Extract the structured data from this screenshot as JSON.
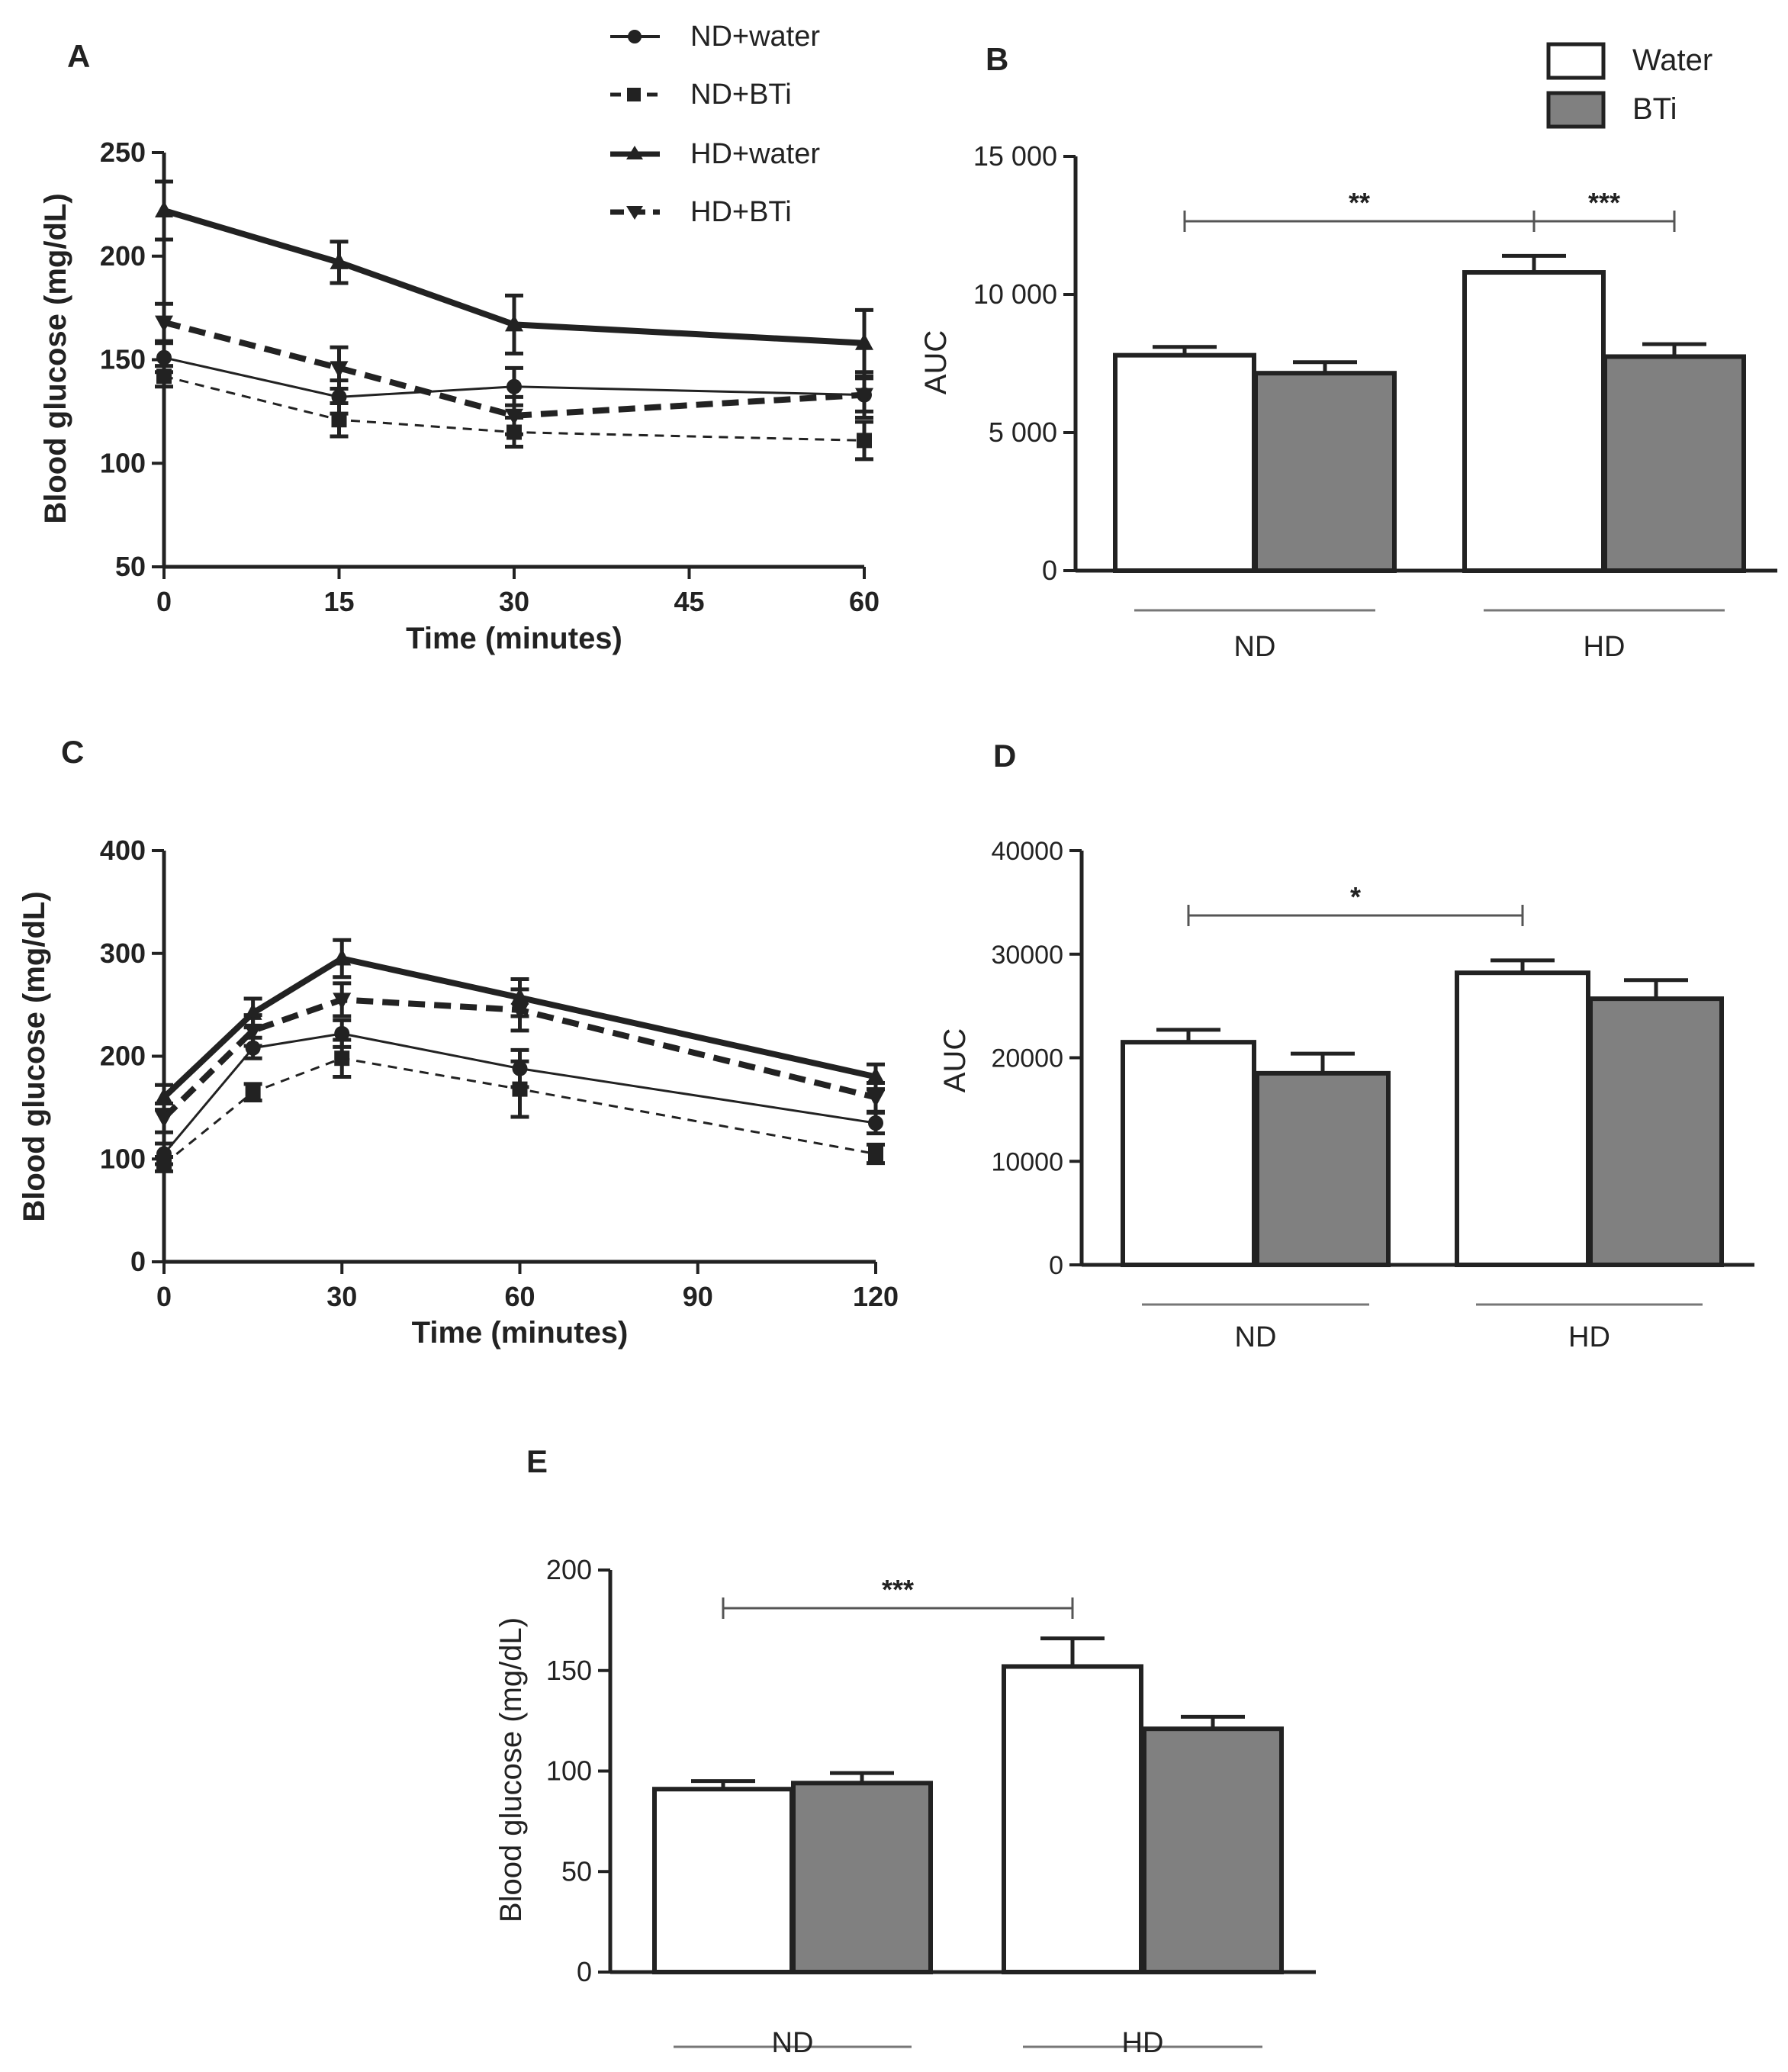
{
  "legend_lines": {
    "entries": [
      {
        "label": "ND+water",
        "marker": "circle",
        "dash": "solid-thin"
      },
      {
        "label": "ND+BTi",
        "marker": "square",
        "dash": "dashed-thin"
      },
      {
        "label": "HD+water",
        "marker": "triangle-up",
        "dash": "solid-thick"
      },
      {
        "label": "HD+BTi",
        "marker": "triangle-down",
        "dash": "dashed-thick"
      }
    ]
  },
  "legend_bars": {
    "entries": [
      {
        "label": "Water",
        "color": "#ffffff"
      },
      {
        "label": "BTi",
        "color": "#808080"
      }
    ]
  },
  "colors": {
    "water": "#ffffff",
    "bti": "#808080",
    "axis": "#222222",
    "sig": "#555555",
    "group_line": "#777777"
  },
  "chart_data": [
    {
      "panel": "A",
      "type": "line",
      "xlabel": "Time (minutes)",
      "ylabel": "Blood glucose (mg/dL)",
      "xlim": [
        0,
        60
      ],
      "ylim": [
        50,
        250
      ],
      "xticks": [
        0,
        15,
        30,
        45,
        60
      ],
      "yticks": [
        50,
        100,
        150,
        200,
        250
      ],
      "series": [
        {
          "name": "ND+water",
          "x": [
            0,
            15,
            30,
            60
          ],
          "values": [
            151,
            132,
            137,
            133
          ],
          "err": [
            7,
            8,
            9,
            8
          ]
        },
        {
          "name": "ND+BTi",
          "x": [
            0,
            15,
            30,
            60
          ],
          "values": [
            142,
            121,
            115,
            111
          ],
          "err": [
            5,
            8,
            7,
            9
          ]
        },
        {
          "name": "HD+water",
          "x": [
            0,
            15,
            30,
            60
          ],
          "values": [
            222,
            197,
            167,
            158
          ],
          "err": [
            14,
            10,
            14,
            16
          ]
        },
        {
          "name": "HD+BTi",
          "x": [
            0,
            15,
            30,
            60
          ],
          "values": [
            168,
            146,
            123,
            133
          ],
          "err": [
            9,
            10,
            9,
            11
          ]
        }
      ]
    },
    {
      "panel": "B",
      "type": "bar",
      "ylabel": "AUC",
      "ylim": [
        0,
        15000
      ],
      "yticks": [
        0,
        5000,
        10000,
        15000
      ],
      "ytick_labels": [
        "0",
        "5 000",
        "10 000",
        "15 000"
      ],
      "groups": [
        "ND",
        "HD"
      ],
      "series": [
        {
          "name": "Water",
          "values": [
            7800,
            10800
          ],
          "err": [
            300,
            600
          ]
        },
        {
          "name": "BTi",
          "values": [
            7150,
            7750
          ],
          "err": [
            400,
            450
          ]
        }
      ],
      "significance": [
        {
          "label": "**",
          "from": "ND-Water",
          "to": "HD-Water"
        },
        {
          "label": "***",
          "from": "HD-Water",
          "to": "HD-BTi"
        }
      ]
    },
    {
      "panel": "C",
      "type": "line",
      "xlabel": "Time (minutes)",
      "ylabel": "Blood glucose (mg/dL)",
      "xlim": [
        0,
        120
      ],
      "ylim": [
        0,
        400
      ],
      "xticks": [
        0,
        30,
        60,
        90,
        120
      ],
      "yticks": [
        0,
        100,
        200,
        300,
        400
      ],
      "series": [
        {
          "name": "ND+water",
          "x": [
            0,
            15,
            30,
            60,
            120
          ],
          "values": [
            105,
            208,
            222,
            188,
            135
          ],
          "err": [
            10,
            10,
            13,
            18,
            10
          ]
        },
        {
          "name": "ND+BTi",
          "x": [
            0,
            15,
            30,
            60,
            120
          ],
          "values": [
            95,
            165,
            198,
            168,
            105
          ],
          "err": [
            7,
            8,
            18,
            27,
            9
          ]
        },
        {
          "name": "HD+water",
          "x": [
            0,
            15,
            30,
            60,
            120
          ],
          "values": [
            160,
            242,
            295,
            257,
            180
          ],
          "err": [
            12,
            14,
            18,
            18,
            12
          ]
        },
        {
          "name": "HD+BTi",
          "x": [
            0,
            15,
            30,
            60,
            120
          ],
          "values": [
            140,
            225,
            255,
            245,
            160
          ],
          "err": [
            14,
            15,
            16,
            20,
            14
          ]
        }
      ]
    },
    {
      "panel": "D",
      "type": "bar",
      "ylabel": "AUC",
      "ylim": [
        0,
        40000
      ],
      "yticks": [
        0,
        10000,
        20000,
        30000,
        40000
      ],
      "ytick_labels": [
        "0",
        "10000",
        "20000",
        "30000",
        "40000"
      ],
      "groups": [
        "ND",
        "HD"
      ],
      "series": [
        {
          "name": "Water",
          "values": [
            21500,
            28200
          ],
          "err": [
            1200,
            1200
          ]
        },
        {
          "name": "BTi",
          "values": [
            18500,
            25700
          ],
          "err": [
            1900,
            1800
          ]
        }
      ],
      "significance": [
        {
          "label": "*",
          "from": "ND-Water",
          "to": "HD-Water"
        }
      ]
    },
    {
      "panel": "E",
      "type": "bar",
      "ylabel": "Blood glucose (mg/dL)",
      "ylim": [
        0,
        200
      ],
      "yticks": [
        0,
        50,
        100,
        150,
        200
      ],
      "ytick_labels": [
        "0",
        "50",
        "100",
        "150",
        "200"
      ],
      "groups": [
        "ND",
        "HD"
      ],
      "series": [
        {
          "name": "Water",
          "values": [
            91,
            152
          ],
          "err": [
            4,
            14
          ]
        },
        {
          "name": "BTi",
          "values": [
            94,
            121
          ],
          "err": [
            5,
            6
          ]
        }
      ],
      "significance": [
        {
          "label": "***",
          "from": "ND-Water",
          "to": "HD-Water"
        }
      ]
    }
  ]
}
